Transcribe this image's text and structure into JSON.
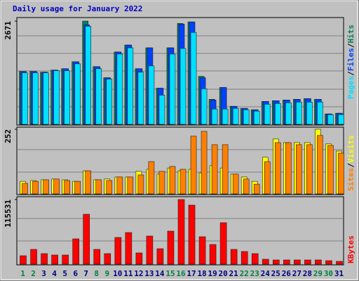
{
  "chart_data": [
    {
      "type": "bar",
      "title": "Daily usage for January 2022",
      "legend_separator": "/",
      "ylim": [
        0,
        2671
      ],
      "yticks": [
        2671
      ],
      "series": [
        {
          "name": "Hits",
          "color": "#00805c",
          "values": [
            1368,
            1368,
            1350,
            1404,
            1440,
            1620,
            2671,
            1494,
            1206,
            1872,
            2052,
            1440,
            1980,
            936,
            1980,
            2610,
            2650,
            1242,
            648,
            954,
            468,
            414,
            378,
            594,
            612,
            630,
            648,
            666,
            648,
            270,
            288
          ]
        },
        {
          "name": "Files",
          "color": "#0040ff",
          "values": [
            1368,
            1368,
            1350,
            1404,
            1440,
            1620,
            2574,
            1494,
            1206,
            1872,
            2052,
            1440,
            1980,
            936,
            1980,
            2592,
            2650,
            1206,
            630,
            954,
            468,
            414,
            378,
            594,
            612,
            630,
            648,
            666,
            648,
            270,
            288
          ]
        },
        {
          "name": "Pages",
          "color": "#00e0ff",
          "values": [
            1332,
            1332,
            1332,
            1386,
            1386,
            1566,
            2538,
            1440,
            1170,
            1818,
            1980,
            1350,
            1512,
            756,
            1818,
            1962,
            2376,
            918,
            396,
            396,
            414,
            378,
            342,
            522,
            540,
            558,
            576,
            576,
            576,
            252,
            252
          ]
        }
      ]
    },
    {
      "type": "bar",
      "ylim": [
        0,
        252
      ],
      "yticks": [
        252
      ],
      "series": [
        {
          "name": "Visits",
          "color": "#ffff00",
          "values": [
            49,
            52,
            55,
            58,
            55,
            49,
            90,
            55,
            58,
            66,
            66,
            88,
            96,
            77,
            101,
            90,
            96,
            82,
            110,
            101,
            77,
            66,
            49,
            143,
            214,
            200,
            200,
            200,
            252,
            195,
            167
          ]
        },
        {
          "name": "Sites",
          "color": "#ff8000",
          "values": [
            41,
            49,
            55,
            58,
            52,
            49,
            90,
            55,
            52,
            66,
            66,
            74,
            126,
            88,
            107,
            96,
            225,
            244,
            192,
            192,
            77,
            58,
            38,
            126,
            200,
            200,
            192,
            192,
            228,
            189,
            159
          ]
        }
      ]
    },
    {
      "type": "bar",
      "ylim": [
        0,
        115531
      ],
      "yticks": [
        115531
      ],
      "categories": [
        "1",
        "2",
        "3",
        "4",
        "5",
        "6",
        "7",
        "8",
        "9",
        "10",
        "11",
        "12",
        "13",
        "14",
        "15",
        "16",
        "17",
        "18",
        "19",
        "20",
        "21",
        "22",
        "23",
        "24",
        "25",
        "26",
        "27",
        "28",
        "29",
        "30",
        "31"
      ],
      "category_colors": [
        "#008040",
        "#008040",
        "#000080",
        "#000080",
        "#000080",
        "#000080",
        "#000080",
        "#008040",
        "#008040",
        "#000080",
        "#000080",
        "#000080",
        "#000080",
        "#000080",
        "#008040",
        "#008040",
        "#000080",
        "#000080",
        "#000080",
        "#000080",
        "#000080",
        "#008040",
        "#008040",
        "#000080",
        "#000080",
        "#000080",
        "#000080",
        "#000080",
        "#008040",
        "#008040",
        "#000080"
      ],
      "series": [
        {
          "name": "KBytes",
          "color": "#ff0000",
          "values": [
            15072,
            26376,
            18840,
            16328,
            16328,
            45216,
            89176,
            26376,
            18840,
            47728,
            56520,
            20096,
            50240,
            27632,
            59032,
            115531,
            105504,
            48984,
            35168,
            74104,
            26376,
            22608,
            18840,
            8792,
            7536,
            7536,
            7536,
            7536,
            7536,
            6280,
            5024
          ]
        }
      ]
    }
  ]
}
